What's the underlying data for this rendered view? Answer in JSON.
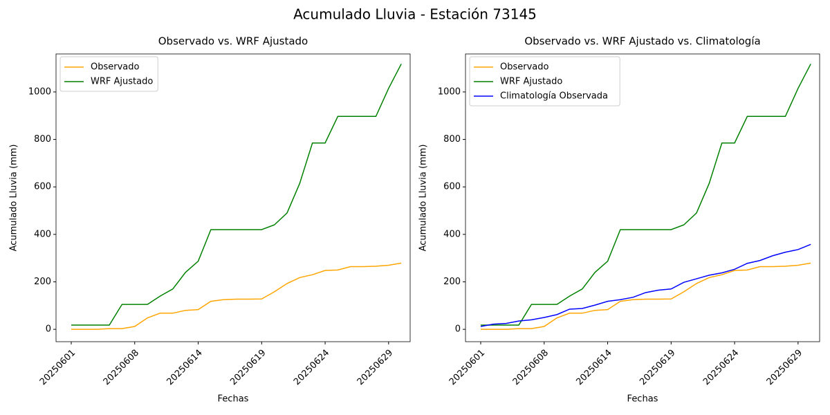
{
  "title": "Acumulado Lluvia - Estación 73145",
  "chart_data": [
    {
      "type": "line",
      "title": "Observado vs. WRF Ajustado",
      "xlabel": "Fechas",
      "ylabel": "Acumulado Lluvia (mm)",
      "categories": [
        "20250601",
        null,
        null,
        null,
        null,
        "20250608",
        null,
        null,
        null,
        null,
        "20250614",
        null,
        null,
        null,
        null,
        "20250619",
        null,
        null,
        null,
        null,
        "20250624",
        null,
        null,
        null,
        null,
        "20250629",
        null
      ],
      "series": [
        {
          "name": "Observado",
          "color": "#ffa500",
          "values": [
            0,
            0,
            0,
            3,
            3,
            12,
            48,
            68,
            68,
            80,
            83,
            118,
            125,
            127,
            127,
            128,
            158,
            193,
            218,
            230,
            248,
            250,
            264,
            264,
            266,
            270,
            279
          ]
        },
        {
          "name": "WRF Ajustado",
          "color": "#008000",
          "values": [
            18,
            18,
            18,
            18,
            105,
            105,
            105,
            140,
            170,
            240,
            287,
            420,
            420,
            420,
            420,
            420,
            440,
            490,
            615,
            785,
            785,
            897,
            897,
            897,
            897,
            1015,
            1118
          ]
        }
      ],
      "ylim": [
        -52,
        1160
      ],
      "yticks": [
        0,
        200,
        400,
        600,
        800,
        1000
      ],
      "legend": "upper left"
    },
    {
      "type": "line",
      "title": "Observado vs. WRF Ajustado vs. Climatología",
      "xlabel": "Fechas",
      "ylabel": "Acumulado Lluvia (mm)",
      "categories": [
        "20250601",
        null,
        null,
        null,
        null,
        "20250608",
        null,
        null,
        null,
        null,
        "20250614",
        null,
        null,
        null,
        null,
        "20250619",
        null,
        null,
        null,
        null,
        "20250624",
        null,
        null,
        null,
        null,
        "20250629",
        null
      ],
      "series": [
        {
          "name": "Observado",
          "color": "#ffa500",
          "values": [
            0,
            0,
            0,
            3,
            3,
            12,
            48,
            68,
            68,
            80,
            83,
            118,
            125,
            127,
            127,
            128,
            158,
            193,
            218,
            230,
            248,
            250,
            264,
            264,
            266,
            270,
            279
          ]
        },
        {
          "name": "WRF Ajustado",
          "color": "#008000",
          "values": [
            18,
            18,
            18,
            18,
            105,
            105,
            105,
            140,
            170,
            240,
            287,
            420,
            420,
            420,
            420,
            420,
            440,
            490,
            615,
            785,
            785,
            897,
            897,
            897,
            897,
            1015,
            1118
          ]
        },
        {
          "name": "Climatología Observada",
          "color": "#0000ff",
          "values": [
            12,
            22,
            25,
            35,
            40,
            50,
            62,
            85,
            88,
            102,
            118,
            125,
            135,
            155,
            165,
            170,
            198,
            213,
            228,
            238,
            253,
            278,
            290,
            310,
            325,
            336,
            358
          ]
        }
      ],
      "ylim": [
        -52,
        1160
      ],
      "yticks": [
        0,
        200,
        400,
        600,
        800,
        1000
      ],
      "legend": "upper left"
    }
  ]
}
